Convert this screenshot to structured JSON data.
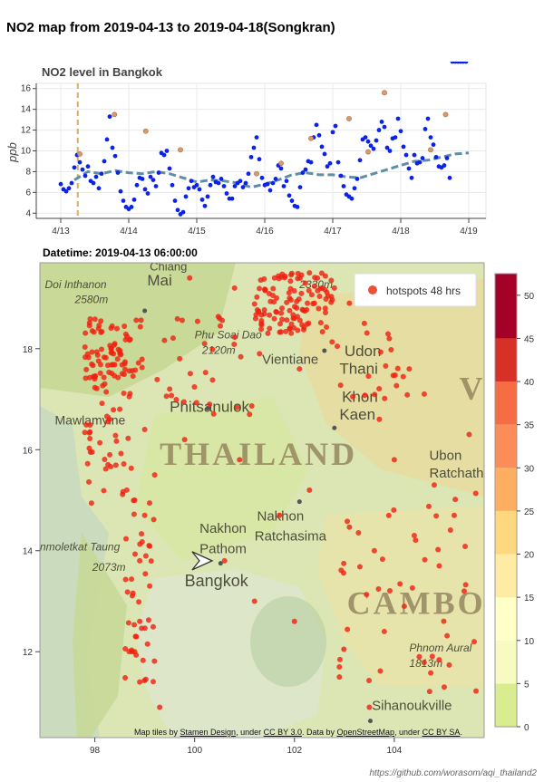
{
  "page_title": "NO2 map from 2019-04-13 to 2019-04-18(Songkran)",
  "footer_url": "https://github.com/worasom/aqi_thailand2",
  "chart_data": [
    {
      "type": "scatter",
      "title": "NO2 level in Bangkok",
      "xlabel": "",
      "ylabel": "ppb",
      "x_ticks": [
        "4/13",
        "4/14",
        "4/15",
        "4/16",
        "4/17",
        "4/18",
        "4/19"
      ],
      "y_ticks": [
        4,
        6,
        8,
        10,
        12,
        14,
        16
      ],
      "xlim": [
        0,
        6
      ],
      "ylim": [
        3.5,
        16.5
      ],
      "grid": true,
      "marker_day": 0.25,
      "points_x": [
        0.0,
        0.04,
        0.08,
        0.12,
        0.16,
        0.2,
        0.24,
        0.28,
        0.32,
        0.36,
        0.4,
        0.44,
        0.48,
        0.52,
        0.56,
        0.6,
        0.64,
        0.68,
        0.72,
        0.76,
        0.8,
        0.84,
        0.88,
        0.92,
        0.96,
        1.0,
        1.04,
        1.08,
        1.12,
        1.16,
        1.2,
        1.24,
        1.28,
        1.32,
        1.36,
        1.4,
        1.44,
        1.48,
        1.52,
        1.56,
        1.6,
        1.64,
        1.68,
        1.72,
        1.76,
        1.8,
        1.84,
        1.88,
        1.92,
        1.96,
        2.0,
        2.04,
        2.08,
        2.12,
        2.16,
        2.2,
        2.24,
        2.28,
        2.32,
        2.36,
        2.4,
        2.44,
        2.48,
        2.52,
        2.56,
        2.6,
        2.64,
        2.68,
        2.72,
        2.76,
        2.8,
        2.84,
        2.88,
        2.92,
        2.96,
        3.0,
        3.04,
        3.08,
        3.12,
        3.16,
        3.2,
        3.24,
        3.28,
        3.32,
        3.36,
        3.4,
        3.44,
        3.48,
        3.52,
        3.56,
        3.6,
        3.64,
        3.68,
        3.72,
        3.76,
        3.8,
        3.84,
        3.88,
        3.92,
        3.96,
        4.0,
        4.04,
        4.08,
        4.12,
        4.16,
        4.2,
        4.24,
        4.28,
        4.32,
        4.36,
        4.4,
        4.44,
        4.48,
        4.52,
        4.56,
        4.6,
        4.64,
        4.68,
        4.72,
        4.76,
        4.8,
        4.84,
        4.88,
        4.92,
        4.96,
        5.0,
        5.04,
        5.08,
        5.12,
        5.16,
        5.2,
        5.24,
        5.28,
        5.32,
        5.36,
        5.4,
        5.44,
        5.48,
        5.52,
        5.56,
        5.6,
        5.64,
        5.68,
        5.72,
        5.76,
        5.8,
        5.84,
        5.88,
        5.92,
        5.96
      ],
      "points_y": [
        6.8,
        6.3,
        6.1,
        6.4,
        6.9,
        8.4,
        9.6,
        8.9,
        8.2,
        7.6,
        8.5,
        7.1,
        6.9,
        7.5,
        6.4,
        7.8,
        9.0,
        11.1,
        13.3,
        10.3,
        9.5,
        7.9,
        6.1,
        5.2,
        4.6,
        4.4,
        4.6,
        5.3,
        6.7,
        7.4,
        7.3,
        6.3,
        5.9,
        7.5,
        7.2,
        6.6,
        7.9,
        9.8,
        9.6,
        10.0,
        8.3,
        6.7,
        5.2,
        4.3,
        3.9,
        4.1,
        5.6,
        6.4,
        7.1,
        6.5,
        6.7,
        6.3,
        5.3,
        4.7,
        5.6,
        6.7,
        7.5,
        7.0,
        6.9,
        7.3,
        6.6,
        5.9,
        5.4,
        5.4,
        6.6,
        6.9,
        7.1,
        6.5,
        6.9,
        7.8,
        9.4,
        10.3,
        11.3,
        9.2,
        7.4,
        6.7,
        6.8,
        6.2,
        6.9,
        7.3,
        8.6,
        8.3,
        6.6,
        7.1,
        5.7,
        5.2,
        4.7,
        4.6,
        6.5,
        7.9,
        8.2,
        9.0,
        8.9,
        11.3,
        12.5,
        11.5,
        10.4,
        9.7,
        8.5,
        8.8,
        11.8,
        12.4,
        8.9,
        7.6,
        6.6,
        5.8,
        5.6,
        5.4,
        6.4,
        7.3,
        9.1,
        11.1,
        11.3,
        10.9,
        10.5,
        10.2,
        11.0,
        12.0,
        12.8,
        12.3,
        10.3,
        10.0,
        11.2,
        11.3,
        13.1,
        11.9,
        10.4,
        9.6,
        8.3,
        7.4,
        9.6,
        8.8,
        8.9,
        9.3,
        12.1,
        13.1,
        11.3,
        10.6,
        9.4,
        8.5,
        8.4,
        8.6,
        9.3,
        7.4
      ],
      "highlight_points": [
        {
          "x": 0.28,
          "y": 9.7
        },
        {
          "x": 0.79,
          "y": 13.5
        },
        {
          "x": 1.25,
          "y": 11.9
        },
        {
          "x": 1.76,
          "y": 10.1
        },
        {
          "x": 2.88,
          "y": 7.8
        },
        {
          "x": 3.24,
          "y": 8.8
        },
        {
          "x": 3.68,
          "y": 11.2
        },
        {
          "x": 4.24,
          "y": 13.1
        },
        {
          "x": 4.52,
          "y": 9.9
        },
        {
          "x": 4.76,
          "y": 15.6
        },
        {
          "x": 5.44,
          "y": 10.1
        },
        {
          "x": 5.66,
          "y": 13.5
        }
      ],
      "rolling_mean_x": [
        0.2,
        0.4,
        0.6,
        0.8,
        1.0,
        1.2,
        1.4,
        1.6,
        1.8,
        2.0,
        2.2,
        2.4,
        2.6,
        2.8,
        3.0,
        3.2,
        3.4,
        3.6,
        3.8,
        4.0,
        4.2,
        4.4,
        4.6,
        4.8,
        5.0,
        5.2,
        5.4,
        5.6,
        5.8,
        6.0
      ],
      "rolling_mean_y": [
        7.2,
        8.0,
        7.8,
        8.1,
        7.9,
        7.8,
        8.0,
        7.8,
        7.4,
        7.0,
        7.2,
        7.1,
        6.9,
        6.5,
        6.8,
        7.2,
        7.7,
        7.9,
        7.7,
        7.7,
        7.5,
        7.4,
        7.8,
        8.2,
        8.6,
        9.0,
        9.1,
        9.4,
        9.7,
        9.8
      ]
    },
    {
      "type": "scatter",
      "title": "Datetime: 2019-04-13 06:00:00",
      "legend": "hotspots 48 hrs",
      "legend_position": "top-right",
      "x_ticks": [
        98,
        100,
        102,
        104
      ],
      "y_ticks": [
        12,
        14,
        16,
        18
      ],
      "xlim": [
        96.9,
        105.8
      ],
      "ylim": [
        10.3,
        19.7
      ],
      "colorbar_ticks": [
        0,
        5,
        10,
        15,
        20,
        25,
        30,
        35,
        40,
        45,
        50
      ],
      "colorbar_colors": [
        "#d9ec8f",
        "#f7fbc2",
        "#ffffc8",
        "#ffeca4",
        "#fed87f",
        "#fdae61",
        "#fc8d59",
        "#f46d43",
        "#d73027",
        "#a50026"
      ],
      "hotspots": [
        {
          "lon": 98.4,
          "lat": 18.1
        },
        {
          "lon": 98.6,
          "lat": 17.7
        },
        {
          "lon": 98.2,
          "lat": 17.3
        },
        {
          "lon": 98.5,
          "lat": 16.8
        },
        {
          "lon": 99.0,
          "lat": 16.4
        },
        {
          "lon": 98.3,
          "lat": 15.9
        },
        {
          "lon": 99.2,
          "lat": 15.5
        },
        {
          "lon": 98.8,
          "lat": 15.0
        },
        {
          "lon": 99.0,
          "lat": 14.7
        },
        {
          "lon": 98.9,
          "lat": 13.8
        },
        {
          "lon": 99.1,
          "lat": 13.3
        },
        {
          "lon": 98.9,
          "lat": 12.6
        },
        {
          "lon": 98.8,
          "lat": 12.0
        },
        {
          "lon": 98.9,
          "lat": 11.4
        },
        {
          "lon": 99.3,
          "lat": 10.9
        },
        {
          "lon": 101.9,
          "lat": 19.0
        },
        {
          "lon": 102.0,
          "lat": 18.6
        },
        {
          "lon": 102.4,
          "lat": 18.9
        },
        {
          "lon": 101.6,
          "lat": 19.4
        },
        {
          "lon": 102.3,
          "lat": 19.5
        },
        {
          "lon": 102.8,
          "lat": 19.2
        },
        {
          "lon": 103.1,
          "lat": 18.9
        },
        {
          "lon": 101.5,
          "lat": 18.4
        },
        {
          "lon": 102.1,
          "lat": 17.6
        },
        {
          "lon": 101.3,
          "lat": 17.9
        },
        {
          "lon": 100.5,
          "lat": 18.6
        },
        {
          "lon": 100.8,
          "lat": 19.2
        },
        {
          "lon": 99.9,
          "lat": 19.4
        },
        {
          "lon": 100.2,
          "lat": 18.1
        },
        {
          "lon": 99.7,
          "lat": 17.8
        },
        {
          "lon": 103.4,
          "lat": 18.5
        },
        {
          "lon": 103.9,
          "lat": 18.2
        },
        {
          "lon": 104.3,
          "lat": 17.6
        },
        {
          "lon": 104.6,
          "lat": 17.1
        },
        {
          "lon": 103.7,
          "lat": 16.6
        },
        {
          "lon": 104.0,
          "lat": 15.8
        },
        {
          "lon": 104.8,
          "lat": 15.3
        },
        {
          "lon": 105.2,
          "lat": 14.7
        },
        {
          "lon": 104.4,
          "lat": 14.3
        },
        {
          "lon": 103.6,
          "lat": 14.0
        },
        {
          "lon": 104.9,
          "lat": 13.7
        },
        {
          "lon": 105.4,
          "lat": 13.2
        },
        {
          "lon": 104.2,
          "lat": 12.9
        },
        {
          "lon": 103.8,
          "lat": 12.4
        },
        {
          "lon": 104.5,
          "lat": 11.9
        },
        {
          "lon": 105.0,
          "lat": 11.3
        },
        {
          "lon": 103.5,
          "lat": 10.9
        },
        {
          "lon": 102.9,
          "lat": 11.5
        },
        {
          "lon": 101.7,
          "lat": 14.7
        },
        {
          "lon": 102.3,
          "lat": 15.2
        },
        {
          "lon": 100.9,
          "lat": 15.8
        },
        {
          "lon": 101.1,
          "lat": 16.7
        },
        {
          "lon": 100.3,
          "lat": 16.9
        },
        {
          "lon": 99.8,
          "lat": 16.2
        },
        {
          "lon": 99.5,
          "lat": 17.2
        },
        {
          "lon": 100.6,
          "lat": 13.8
        },
        {
          "lon": 101.2,
          "lat": 13.0
        },
        {
          "lon": 102.0,
          "lat": 12.6
        },
        {
          "lon": 105.6,
          "lat": 12.2
        },
        {
          "lon": 105.5,
          "lat": 16.3
        }
      ],
      "place_labels": [
        {
          "text": "Chiang",
          "lon": 99.1,
          "lat": 19.55,
          "size": 13
        },
        {
          "text": "Mai",
          "lon": 99.05,
          "lat": 19.25,
          "size": 17
        },
        {
          "text": "Doi Inthanon",
          "lon": 97.0,
          "lat": 19.2,
          "size": 12,
          "italic": true
        },
        {
          "text": "2580m",
          "lon": 97.6,
          "lat": 18.9,
          "size": 12,
          "italic": true
        },
        {
          "text": "Phu Soai Dao",
          "lon": 100.0,
          "lat": 18.2,
          "size": 12,
          "italic": true
        },
        {
          "text": "2120m",
          "lon": 100.15,
          "lat": 17.9,
          "size": 12,
          "italic": true
        },
        {
          "text": "2330m",
          "lon": 102.1,
          "lat": 19.2,
          "size": 12,
          "italic": true
        },
        {
          "text": "Vientiane",
          "lon": 101.35,
          "lat": 17.7,
          "size": 15
        },
        {
          "text": "Udon",
          "lon": 103.0,
          "lat": 17.85,
          "size": 17
        },
        {
          "text": "Thani",
          "lon": 102.9,
          "lat": 17.5,
          "size": 17
        },
        {
          "text": "Khon",
          "lon": 102.95,
          "lat": 16.95,
          "size": 17
        },
        {
          "text": "Kaen",
          "lon": 102.9,
          "lat": 16.6,
          "size": 17
        },
        {
          "text": "Phitsanulok",
          "lon": 99.5,
          "lat": 16.75,
          "size": 17
        },
        {
          "text": "Mawlamyine",
          "lon": 97.2,
          "lat": 16.5,
          "size": 14
        },
        {
          "text": "Nakhon",
          "lon": 101.25,
          "lat": 14.6,
          "size": 15
        },
        {
          "text": "Ratchasima",
          "lon": 101.2,
          "lat": 14.2,
          "size": 15
        },
        {
          "text": "Nakhon",
          "lon": 100.1,
          "lat": 14.35,
          "size": 15
        },
        {
          "text": "Pathom",
          "lon": 100.1,
          "lat": 13.95,
          "size": 15
        },
        {
          "text": "Bangkok",
          "lon": 99.8,
          "lat": 13.3,
          "size": 18
        },
        {
          "text": "Ubon",
          "lon": 104.7,
          "lat": 15.8,
          "size": 15
        },
        {
          "text": "Ratchath",
          "lon": 104.7,
          "lat": 15.45,
          "size": 15
        },
        {
          "text": "Phnom Aural",
          "lon": 104.3,
          "lat": 12.0,
          "size": 12,
          "italic": true
        },
        {
          "text": "1813m",
          "lon": 104.3,
          "lat": 11.7,
          "size": 12,
          "italic": true
        },
        {
          "text": "Sihanoukville",
          "lon": 103.55,
          "lat": 10.85,
          "size": 15
        },
        {
          "text": "nmoletkat Taung",
          "lon": 96.9,
          "lat": 14.0,
          "size": 12,
          "italic": true
        },
        {
          "text": "2073m",
          "lon": 97.95,
          "lat": 13.6,
          "size": 12,
          "italic": true
        }
      ],
      "big_labels": [
        {
          "text": "THAILAND",
          "lon": 99.3,
          "lat": 15.7,
          "size": 36
        },
        {
          "text": "CAMBOD",
          "lon": 103.05,
          "lat": 12.75,
          "size": 36
        },
        {
          "text": "V",
          "lon": 105.3,
          "lat": 17.0,
          "size": 36
        }
      ],
      "cursor": {
        "lon": 100.35,
        "lat": 13.8
      }
    }
  ],
  "map_credits": {
    "prefix": "Map tiles by ",
    "stamen": "Stamen Design",
    "mid1": ", under ",
    "cc1": "CC BY 3.0",
    "mid2": ". Data by ",
    "osm": "OpenStreetMap",
    "mid3": ", under ",
    "cc2": "CC BY SA",
    "suffix": "."
  }
}
